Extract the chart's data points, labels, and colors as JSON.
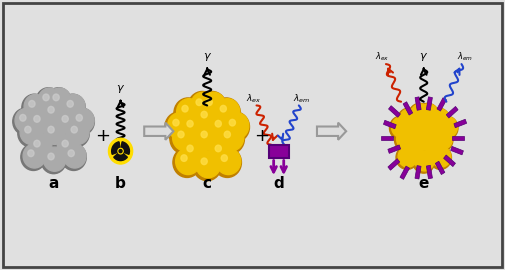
{
  "background_color": "#e0e0e0",
  "border_color": "#444444",
  "fig_width": 5.05,
  "fig_height": 2.7,
  "dpi": 100,
  "labels": {
    "a": "a",
    "b": "b",
    "c": "c",
    "d": "d",
    "e": "e"
  },
  "colors": {
    "gray_sphere": "#aaaaaa",
    "gray_sphere_dark": "#777777",
    "gray_sphere_light": "#cccccc",
    "yellow_sphere": "#f0c000",
    "yellow_sphere_dark": "#c08000",
    "yellow_sphere_light": "#ffdd44",
    "purple": "#880099",
    "dark_purple": "#550077",
    "black": "#000000",
    "red_wave": "#cc2200",
    "blue_wave": "#2244cc",
    "white": "#ffffff",
    "radiation_yellow": "#ffdd00",
    "radiation_black": "#111111",
    "arrow_fill": "#dddddd",
    "arrow_edge": "#999999"
  }
}
